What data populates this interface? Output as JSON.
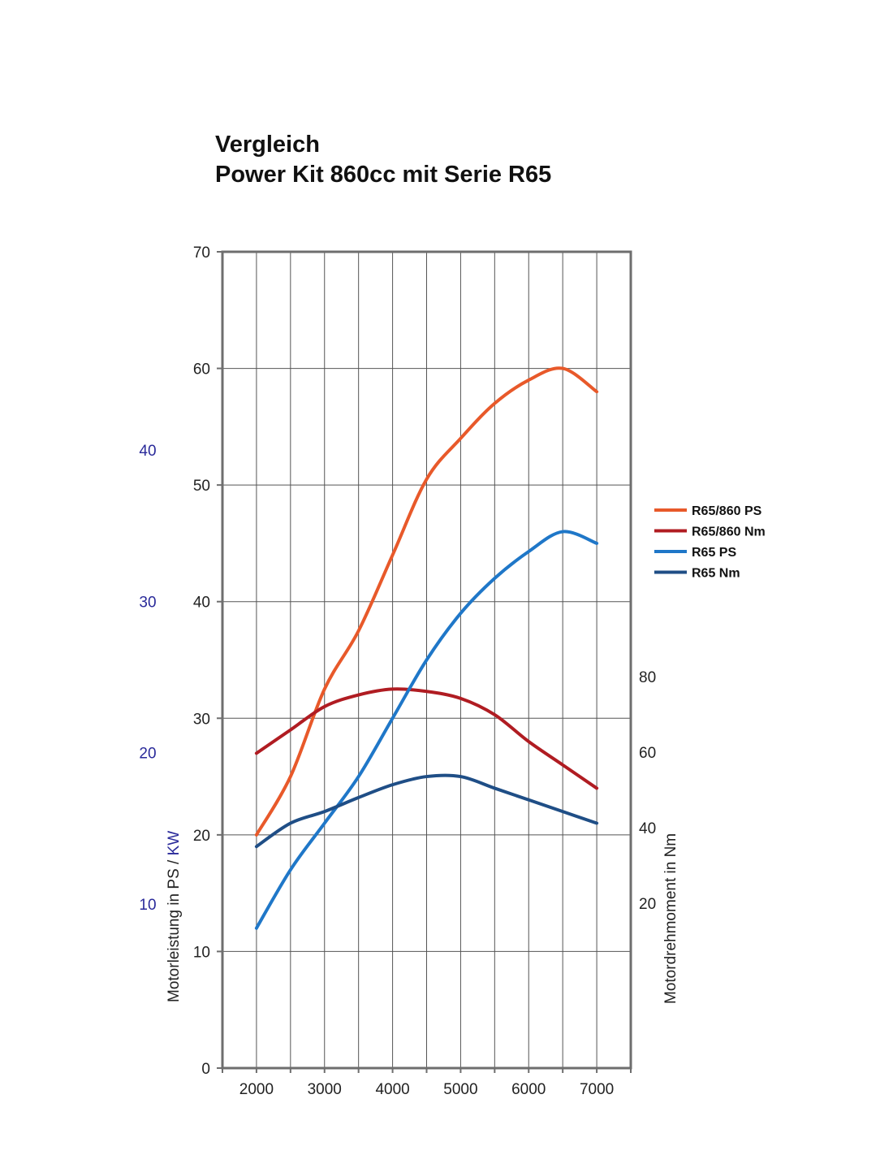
{
  "title": {
    "line1": "Vergleich",
    "line2": "Power Kit 860cc mit Serie R65"
  },
  "chart_data": {
    "type": "line",
    "x_ticks": [
      2000,
      3000,
      4000,
      5000,
      6000,
      7000
    ],
    "xlim": [
      1500,
      7500
    ],
    "y_left": {
      "label": "Motorleistung in PS",
      "ticks": [
        0,
        10,
        20,
        30,
        40,
        50,
        60,
        70
      ],
      "ylim": [
        0,
        70
      ]
    },
    "y_kw": {
      "label": "KW",
      "ticks": [
        10,
        20,
        30,
        40
      ]
    },
    "y_right": {
      "label": "Motordrehmoment in Nm",
      "ticks": [
        20,
        40,
        60,
        80
      ]
    },
    "legend_position": "right",
    "series": [
      {
        "name": "R65/860 PS",
        "color": "#e8592a",
        "axis": "PS",
        "x": [
          2000,
          2500,
          3000,
          3500,
          4000,
          4500,
          5000,
          5500,
          6000,
          6500,
          7000
        ],
        "y": [
          20,
          25,
          32.5,
          37.5,
          44,
          50.5,
          54,
          57,
          59,
          60,
          58
        ]
      },
      {
        "name": "R65/860 Nm",
        "color": "#b01c22",
        "axis": "PS",
        "x": [
          2000,
          2500,
          3000,
          3500,
          4000,
          4500,
          5000,
          5500,
          6000,
          6500,
          7000
        ],
        "y": [
          27,
          29,
          31,
          32,
          32.5,
          32.3,
          31.7,
          30.3,
          28,
          26,
          24
        ]
      },
      {
        "name": "R65 PS",
        "color": "#1f77c8",
        "axis": "PS",
        "x": [
          2000,
          2500,
          3000,
          3500,
          4000,
          4500,
          5000,
          5500,
          6000,
          6500,
          7000
        ],
        "y": [
          12,
          17,
          21,
          25,
          30,
          35,
          39,
          42,
          44.3,
          46,
          45
        ]
      },
      {
        "name": "R65 Nm",
        "color": "#1f4e86",
        "axis": "PS",
        "x": [
          2000,
          2500,
          3000,
          3500,
          4000,
          4500,
          5000,
          5500,
          6000,
          6500,
          7000
        ],
        "y": [
          19,
          21,
          22,
          23.2,
          24.3,
          25,
          25,
          24,
          23,
          22,
          21
        ]
      }
    ]
  }
}
